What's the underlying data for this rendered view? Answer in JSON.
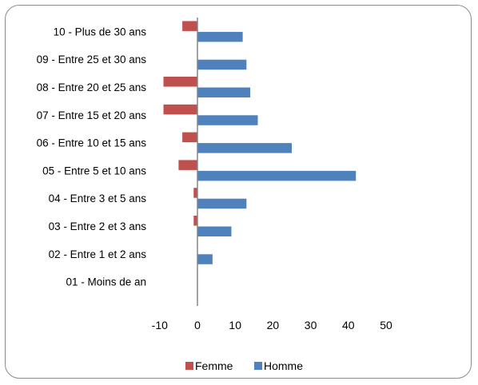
{
  "chart_data": {
    "type": "bar",
    "orientation": "horizontal",
    "categories": [
      "10 - Plus de 30 ans",
      "09 - Entre 25 et 30 ans",
      "08 - Entre 20 et 25 ans",
      "07 - Entre 15 et 20 ans",
      "06 - Entre 10 et 15 ans",
      "05 - Entre 5 et 10 ans",
      "04 - Entre 3 et 5 ans",
      "03 - Entre 2 et 3 ans",
      "02 - Entre 1 et 2 ans",
      "01 - Moins de an"
    ],
    "series": [
      {
        "name": "Femme",
        "color": "#c0504d",
        "values": [
          -4,
          0,
          -9,
          -9,
          -4,
          -5,
          -1,
          -1,
          0,
          0
        ]
      },
      {
        "name": "Homme",
        "color": "#4f81bd",
        "values": [
          12,
          13,
          14,
          16,
          25,
          42,
          13,
          9,
          4,
          0
        ]
      }
    ],
    "xlim": [
      -10,
      50
    ],
    "xticks": [
      "-10",
      "0",
      "10",
      "20",
      "30",
      "40",
      "50"
    ],
    "legend_position": "bottom",
    "grid": false
  }
}
